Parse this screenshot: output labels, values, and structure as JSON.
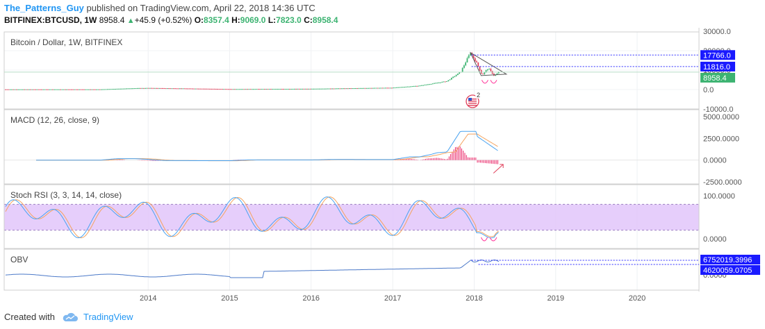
{
  "header": {
    "author": "The_Patterns_Guy",
    "published_text": "published on TradingView.com, April 22, 2018 14:36 UTC",
    "symbol": "BITFINEX:BTCUSD, 1W",
    "last": "8958.4",
    "change": "+45.9 (+0.52%)",
    "o_label": "O:",
    "o": "8357.4",
    "h_label": "H:",
    "h": "9069.0",
    "l_label": "L:",
    "l": "7823.0",
    "c_label": "C:",
    "c": "8958.4"
  },
  "colors": {
    "up": "#3cb371",
    "down": "#e0405a",
    "accent": "#2196f3",
    "label_bg": "#1a1aff",
    "macd_line": "#4aa3f0",
    "signal_line": "#f4a460",
    "hist": "#e91e63",
    "stoch_band": "#e2c6fa",
    "obv_line": "#4a78c8"
  },
  "chart_data": [
    {
      "type": "candlestick",
      "title": "Bitcoin / Dollar, 1W, BITFINEX",
      "y_ticks": [
        "30000.0",
        "20000.0",
        "10000.0",
        "0.0",
        "-10000.0"
      ],
      "ylim": [
        -10000,
        30000
      ],
      "x_ticks": [
        "2014",
        "2015",
        "2016",
        "2017",
        "2018",
        "2019",
        "2020"
      ],
      "price_labels": [
        "17766.0",
        "11816.0",
        "8958.4"
      ],
      "levels": [
        17766.0,
        11816.0
      ],
      "last_price": 8958.4,
      "approx_weekly_close": [
        {
          "date": "2013-06",
          "value": 100
        },
        {
          "date": "2013-11",
          "value": 700
        },
        {
          "date": "2014-01",
          "value": 800
        },
        {
          "date": "2014-06",
          "value": 600
        },
        {
          "date": "2015-01",
          "value": 250
        },
        {
          "date": "2016-01",
          "value": 400
        },
        {
          "date": "2016-06",
          "value": 650
        },
        {
          "date": "2017-01",
          "value": 950
        },
        {
          "date": "2017-05",
          "value": 2000
        },
        {
          "date": "2017-09",
          "value": 4300
        },
        {
          "date": "2017-11",
          "value": 9000
        },
        {
          "date": "2017-12-15",
          "value": 19000
        },
        {
          "date": "2018-01-15",
          "value": 13000
        },
        {
          "date": "2018-02-05",
          "value": 7500
        },
        {
          "date": "2018-03-05",
          "value": 11000
        },
        {
          "date": "2018-04-01",
          "value": 7000
        },
        {
          "date": "2018-04-22",
          "value": 8958.4
        }
      ]
    },
    {
      "type": "line",
      "title": "MACD (12, 26, close, 9)",
      "y_ticks": [
        "5000.0000",
        "2500.0000",
        "0.0000",
        "-2500.0000"
      ],
      "ylim": [
        -2500,
        5000
      ]
    },
    {
      "type": "line",
      "title": "Stoch RSI (3, 3, 14, 14, close)",
      "y_ticks": [
        "100.0000",
        "0.0000"
      ],
      "band": [
        20,
        80
      ]
    },
    {
      "type": "line",
      "title": "OBV",
      "y_ticks": [
        "0.0000"
      ],
      "value_labels": [
        "6752019.3996",
        "4620059.0705"
      ]
    }
  ],
  "footer": {
    "created_with": "Created with",
    "brand": "TradingView"
  }
}
